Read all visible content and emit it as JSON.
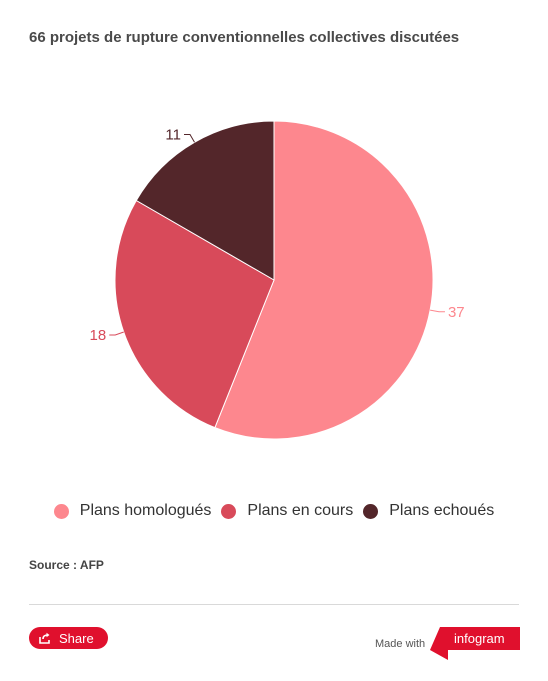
{
  "title": "66 projets de rupture conventionnelles collectives discutées",
  "chart_data": {
    "type": "pie",
    "title": "66 projets de rupture conventionnelles collectives discutées",
    "slices": [
      {
        "label": "Plans homologués",
        "value": 37,
        "color": "#fd878e"
      },
      {
        "label": "Plans en cours",
        "value": 18,
        "color": "#d84a5a"
      },
      {
        "label": "Plans echoués",
        "value": 11,
        "color": "#53262a"
      }
    ],
    "legend_position": "bottom"
  },
  "source": "Source : AFP",
  "footer": {
    "share_label": "Share",
    "made_with": "Made with",
    "brand": "infogram",
    "brand_color": "#e0102d"
  }
}
